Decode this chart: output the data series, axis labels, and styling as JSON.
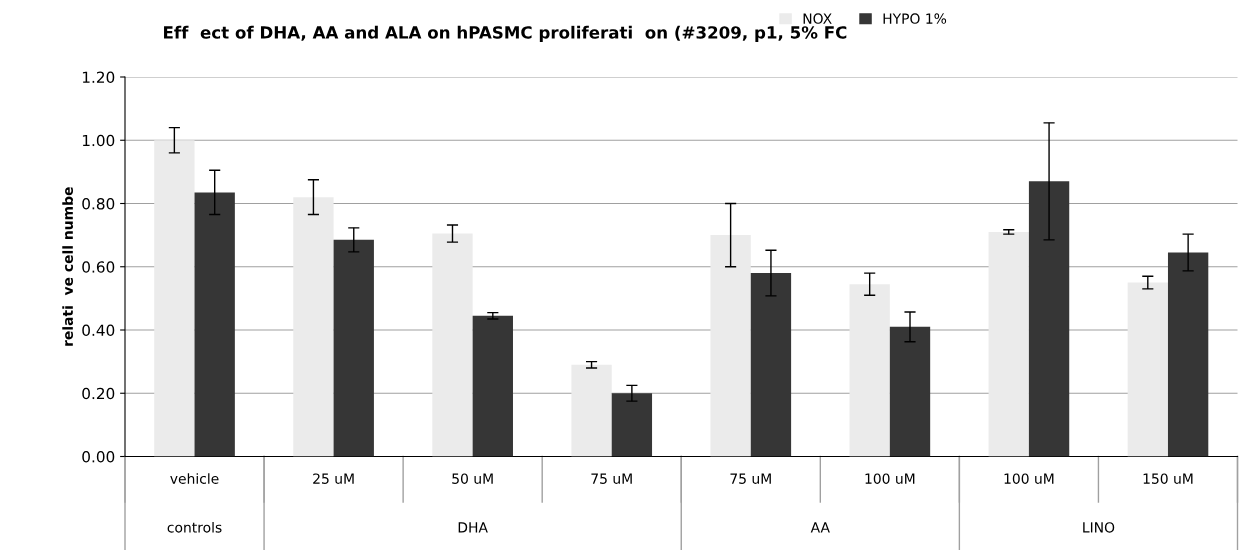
{
  "chart_data": {
    "type": "bar",
    "title": "Eff  ect of DHA, AA and ALA on hPASMC proliferati  on (#3209, p1, 5% FC",
    "ylabel": "relati  ve cell numbe",
    "categories": [
      "vehicle",
      "25 uM",
      "50 uM",
      "75 uM",
      "75 uM",
      "100 uM",
      "100 uM",
      "150 uM"
    ],
    "series": [
      {
        "name": "NOX",
        "color": "#ebebeb",
        "values": [
          1.0,
          0.82,
          0.705,
          0.29,
          0.7,
          0.545,
          0.71,
          0.55
        ],
        "errors": [
          0.04,
          0.055,
          0.027,
          0.01,
          0.1,
          0.035,
          0.007,
          0.02
        ]
      },
      {
        "name": "HYPO 1%",
        "color": "#363636",
        "values": [
          0.835,
          0.685,
          0.445,
          0.2,
          0.58,
          0.41,
          0.87,
          0.645
        ],
        "errors": [
          0.07,
          0.038,
          0.01,
          0.025,
          0.072,
          0.047,
          0.185,
          0.058
        ]
      }
    ],
    "annotations": [
      "controls",
      "DHA",
      "AA",
      "LINO"
    ],
    "ylim": [
      0,
      1.2
    ],
    "yticks": [
      {
        "value": 0,
        "label": "0.00"
      },
      {
        "value": 0.2,
        "label": "0.20"
      },
      {
        "value": 0.4,
        "label": "0.40"
      },
      {
        "value": 0.6,
        "label": "0.60"
      },
      {
        "value": 0.8,
        "label": "0.80"
      },
      {
        "value": 1.0,
        "label": "1.00"
      },
      {
        "value": 1.2,
        "label": "1.20"
      }
    ],
    "grid": "y",
    "legend": "top right"
  }
}
